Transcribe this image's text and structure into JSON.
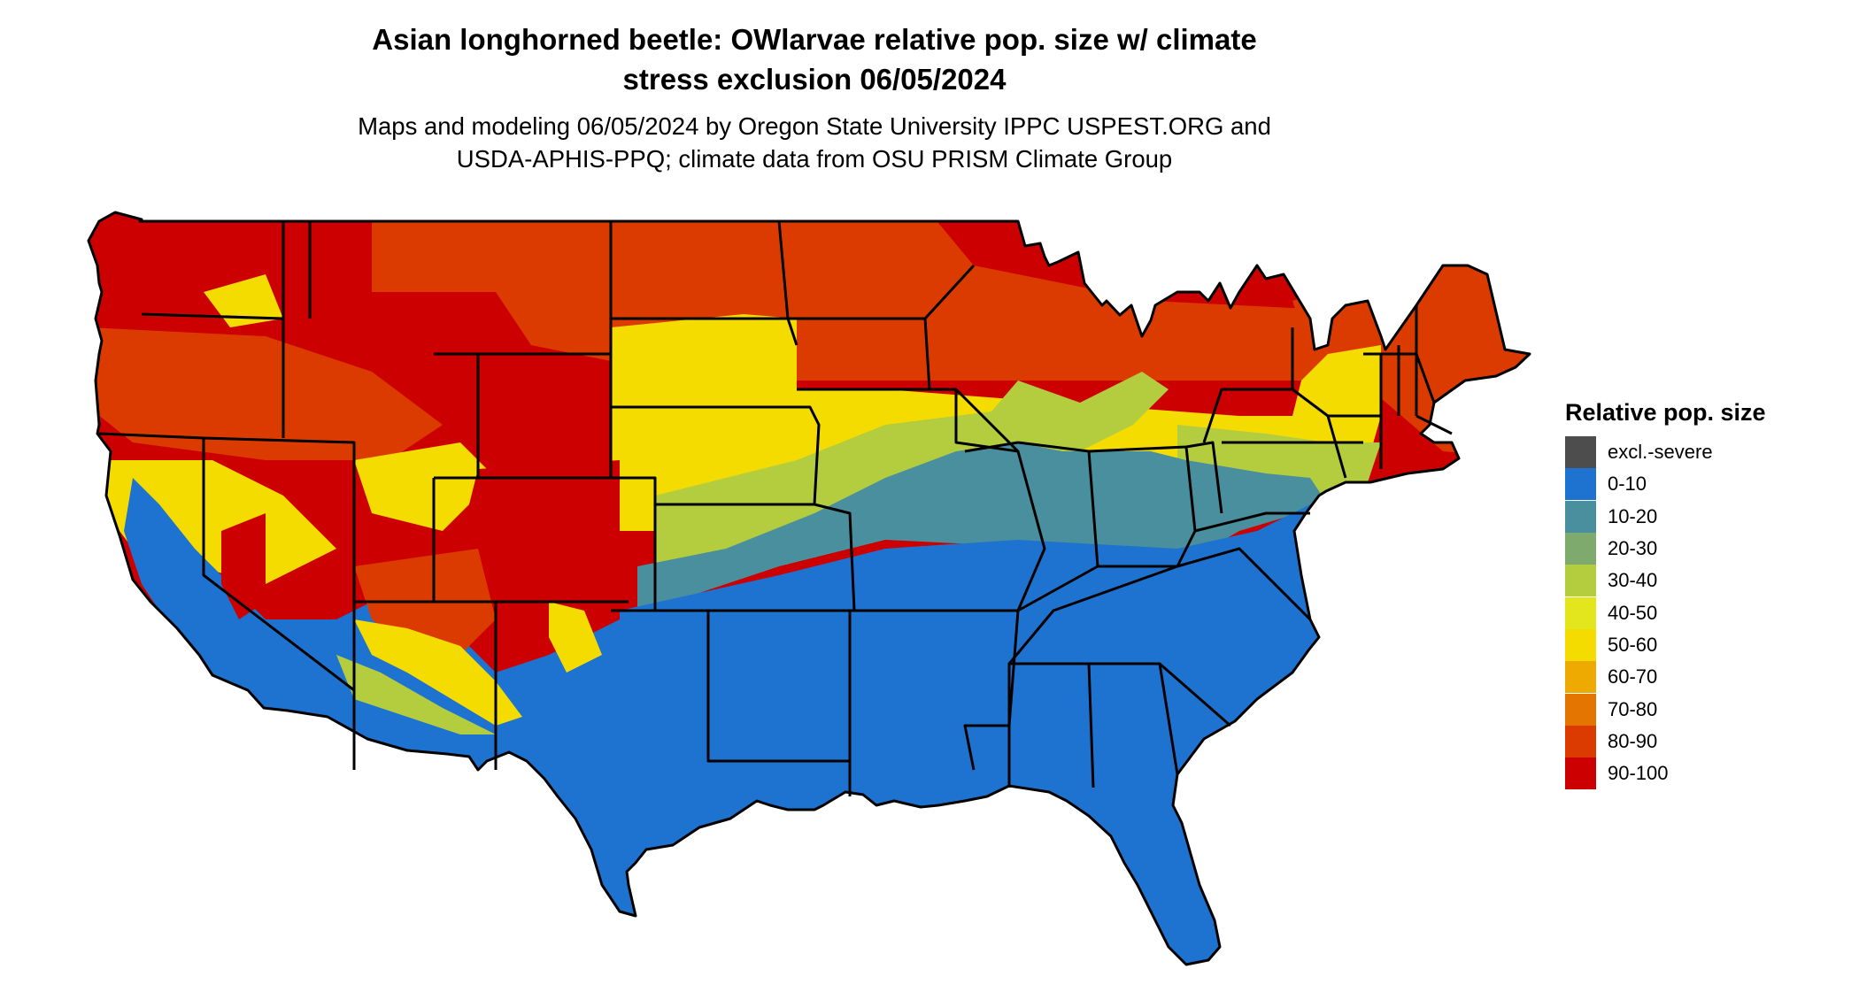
{
  "title": {
    "line1": "Asian longhorned beetle: OWlarvae relative pop. size w/ climate",
    "line2": "stress exclusion 06/05/2024"
  },
  "subtitle": {
    "line1": "Maps and modeling 06/05/2024 by Oregon State University IPPC USPEST.ORG and",
    "line2": "USDA-APHIS-PPQ; climate data from OSU PRISM Climate Group"
  },
  "legend": {
    "title": "Relative pop. size",
    "items": [
      {
        "label": "excl.-severe",
        "color": "#4d4d4d"
      },
      {
        "label": "0-10",
        "color": "#1f73d0"
      },
      {
        "label": "10-20",
        "color": "#4a8f9e"
      },
      {
        "label": "20-30",
        "color": "#7faa6e"
      },
      {
        "label": "30-40",
        "color": "#b3cd3f"
      },
      {
        "label": "40-50",
        "color": "#e3e61c"
      },
      {
        "label": "50-60",
        "color": "#f5dc00"
      },
      {
        "label": "60-70",
        "color": "#eeaa00"
      },
      {
        "label": "70-80",
        "color": "#e47500"
      },
      {
        "label": "80-90",
        "color": "#dc3b00"
      },
      {
        "label": "90-100",
        "color": "#cc0000"
      }
    ]
  },
  "map": {
    "region": "Contiguous United States",
    "boundary_color": "#000000"
  }
}
